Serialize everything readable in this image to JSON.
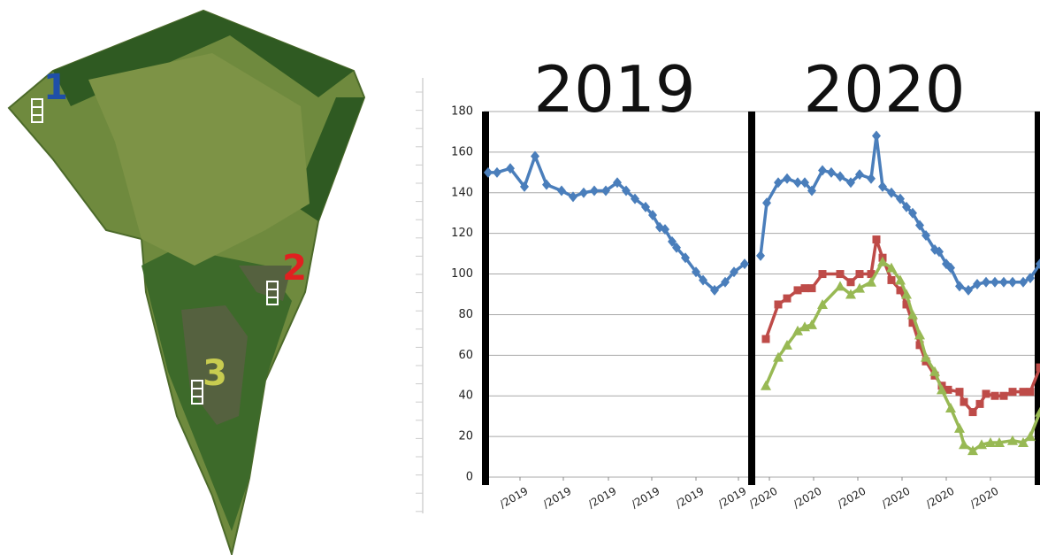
{
  "map": {
    "labels": [
      {
        "text": "1",
        "color": "#1f4fa8"
      },
      {
        "text": "2",
        "color": "#e02020"
      },
      {
        "text": "3",
        "color": "#c8cc50"
      }
    ]
  },
  "chart_data": {
    "type": "line",
    "titles": [
      "2019",
      "2020"
    ],
    "xlim": [
      0,
      62.9
    ],
    "ylim": [
      0,
      180
    ],
    "yticks": [
      0,
      20,
      40,
      60,
      80,
      100,
      120,
      140,
      160,
      180
    ],
    "xticks": [
      {
        "value": 4.1,
        "label": "/2019"
      },
      {
        "value": 9,
        "label": "/2019"
      },
      {
        "value": 14.1,
        "label": "/2019"
      },
      {
        "value": 19,
        "label": "/2019"
      },
      {
        "value": 24,
        "label": "/2019"
      },
      {
        "value": 28.8,
        "label": "/2019"
      },
      {
        "value": 32.3,
        "label": "/2020"
      },
      {
        "value": 37.3,
        "label": "/2020"
      },
      {
        "value": 42.3,
        "label": "/2020"
      },
      {
        "value": 47.3,
        "label": "/2020"
      },
      {
        "value": 52.3,
        "label": "/2020"
      },
      {
        "value": 57.3,
        "label": "/2020"
      }
    ],
    "dividers": [
      0.2,
      30.3,
      62.7
    ],
    "grid": true,
    "series": [
      {
        "color": "#4a7ebb",
        "marker": "diamond",
        "x": [
          0.5,
          1.5,
          3,
          4.6,
          5.8,
          7.1,
          8.8,
          10.1,
          11.3,
          12.5,
          13.8,
          15.1,
          16.1,
          17.1,
          18.3,
          19.1,
          19.9,
          20.5,
          21.3,
          21.8,
          22.8,
          24,
          24.8,
          26.1,
          27.3,
          28.3,
          29.5,
          30.3,
          31.3,
          32,
          33.3,
          34.3,
          35.5,
          36.3,
          37.1,
          38.3,
          39.3,
          40.3,
          41.5,
          42.5,
          43.8,
          44.4,
          45.1,
          46.1,
          47.1,
          47.8,
          48.5,
          49.3,
          50,
          51,
          51.5,
          52.3,
          52.8,
          53.8,
          54.8,
          55.8,
          56.8,
          57.8,
          58.8,
          59.8,
          61,
          61.8,
          62.9
        ],
        "values": [
          150,
          150,
          152,
          143,
          158,
          144,
          141,
          138,
          140,
          141,
          141,
          145,
          141,
          137,
          133,
          129,
          123,
          122,
          116,
          113,
          108,
          101,
          97,
          92,
          96,
          101,
          105,
          null,
          109,
          135,
          145,
          147,
          145,
          145,
          141,
          151,
          150,
          148,
          145,
          149,
          147,
          168,
          143,
          140,
          137,
          133,
          130,
          124,
          119,
          112,
          111,
          105,
          103,
          94,
          92,
          95,
          96,
          96,
          96,
          96,
          96,
          98,
          105
        ]
      },
      {
        "color": "#be4b48",
        "marker": "square",
        "x": [
          31.9,
          33.3,
          34.3,
          35.5,
          36.3,
          37.1,
          38.3,
          40.3,
          41.5,
          42.5,
          43.8,
          44.4,
          45.1,
          46.1,
          47.1,
          47.8,
          48.5,
          49.3,
          50,
          51,
          51.8,
          52.5,
          53.8,
          54.3,
          55.3,
          56.1,
          56.8,
          57.8,
          58.8,
          59.8,
          61,
          61.8,
          62.9
        ],
        "values": [
          68,
          85,
          88,
          92,
          93,
          93,
          100,
          100,
          96,
          100,
          100,
          117,
          108,
          97,
          92,
          85,
          76,
          65,
          57,
          50,
          45,
          43,
          42,
          37,
          32,
          36,
          41,
          40,
          40,
          42,
          42,
          42,
          54
        ]
      },
      {
        "color": "#98b954",
        "marker": "triangle",
        "x": [
          31.9,
          33.3,
          34.3,
          35.5,
          36.3,
          37.1,
          38.3,
          40.3,
          41.5,
          42.5,
          43.8,
          45.1,
          46.1,
          47.1,
          47.8,
          48.5,
          49.3,
          50,
          51,
          51.8,
          52.8,
          53.8,
          54.3,
          55.3,
          56.3,
          57.3,
          58.3,
          59.8,
          61,
          61.8,
          62.9
        ],
        "values": [
          45,
          59,
          65,
          72,
          74,
          75,
          85,
          94,
          90,
          93,
          96,
          106,
          103,
          97,
          90,
          80,
          70,
          59,
          52,
          43,
          34,
          24,
          16,
          13,
          16,
          17,
          17,
          18,
          17,
          20,
          32
        ]
      }
    ]
  }
}
